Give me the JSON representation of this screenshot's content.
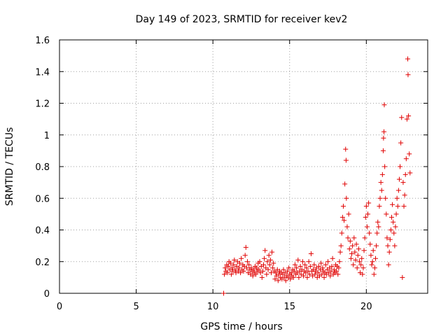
{
  "chart_data": {
    "type": "scatter",
    "title": "Day 149 of 2023, SRMTID for receiver kev2",
    "xlabel": "GPS time / hours",
    "ylabel": "SRMTID / TECUs",
    "xlim": [
      0,
      24
    ],
    "ylim": [
      0,
      1.6
    ],
    "x_ticks": [
      0,
      5,
      10,
      15,
      20
    ],
    "x_tick_labels": [
      "0",
      "5",
      "10",
      "15",
      "20"
    ],
    "y_ticks": [
      0,
      0.2,
      0.4,
      0.6,
      0.8,
      1.0,
      1.2,
      1.4,
      1.6
    ],
    "y_tick_labels": [
      "0",
      "0.2",
      "0.4",
      "0.6",
      "0.8",
      "1",
      "1.2",
      "1.4",
      "1.6"
    ],
    "grid": true,
    "marker": "+",
    "color": "#e00000",
    "series": [
      {
        "name": "kev2",
        "points": [
          [
            10.7,
            0.0
          ],
          [
            10.75,
            0.12
          ],
          [
            10.8,
            0.16
          ],
          [
            10.85,
            0.14
          ],
          [
            10.9,
            0.18
          ],
          [
            10.95,
            0.13
          ],
          [
            11.0,
            0.17
          ],
          [
            11.05,
            0.2
          ],
          [
            11.1,
            0.15
          ],
          [
            11.15,
            0.19
          ],
          [
            11.2,
            0.12
          ],
          [
            11.25,
            0.16
          ],
          [
            11.3,
            0.14
          ],
          [
            11.35,
            0.18
          ],
          [
            11.4,
            0.21
          ],
          [
            11.45,
            0.15
          ],
          [
            11.5,
            0.13
          ],
          [
            11.55,
            0.17
          ],
          [
            11.6,
            0.2
          ],
          [
            11.65,
            0.14
          ],
          [
            11.7,
            0.16
          ],
          [
            11.75,
            0.19
          ],
          [
            11.8,
            0.13
          ],
          [
            11.85,
            0.22
          ],
          [
            11.9,
            0.15
          ],
          [
            11.95,
            0.18
          ],
          [
            12.0,
            0.14
          ],
          [
            12.05,
            0.17
          ],
          [
            12.1,
            0.24
          ],
          [
            12.15,
            0.29
          ],
          [
            12.2,
            0.16
          ],
          [
            12.25,
            0.2
          ],
          [
            12.3,
            0.13
          ],
          [
            12.35,
            0.18
          ],
          [
            12.4,
            0.15
          ],
          [
            12.45,
            0.12
          ],
          [
            12.5,
            0.16
          ],
          [
            12.55,
            0.14
          ],
          [
            12.6,
            0.11
          ],
          [
            12.65,
            0.15
          ],
          [
            12.7,
            0.13
          ],
          [
            12.75,
            0.17
          ],
          [
            12.8,
            0.12
          ],
          [
            12.85,
            0.16
          ],
          [
            12.9,
            0.14
          ],
          [
            12.95,
            0.19
          ],
          [
            13.0,
            0.15
          ],
          [
            13.05,
            0.2
          ],
          [
            13.1,
            0.13
          ],
          [
            13.15,
            0.17
          ],
          [
            13.2,
            0.1
          ],
          [
            13.25,
            0.14
          ],
          [
            13.3,
            0.18
          ],
          [
            13.35,
            0.22
          ],
          [
            13.4,
            0.27
          ],
          [
            13.45,
            0.16
          ],
          [
            13.5,
            0.12
          ],
          [
            13.55,
            0.2
          ],
          [
            13.6,
            0.15
          ],
          [
            13.65,
            0.24
          ],
          [
            13.7,
            0.18
          ],
          [
            13.75,
            0.21
          ],
          [
            13.8,
            0.13
          ],
          [
            13.85,
            0.26
          ],
          [
            13.9,
            0.16
          ],
          [
            13.95,
            0.19
          ],
          [
            14.0,
            0.14
          ],
          [
            14.05,
            0.09
          ],
          [
            14.1,
            0.13
          ],
          [
            14.15,
            0.11
          ],
          [
            14.2,
            0.15
          ],
          [
            14.25,
            0.08
          ],
          [
            14.3,
            0.12
          ],
          [
            14.35,
            0.14
          ],
          [
            14.4,
            0.1
          ],
          [
            14.45,
            0.13
          ],
          [
            14.5,
            0.09
          ],
          [
            14.55,
            0.12
          ],
          [
            14.6,
            0.15
          ],
          [
            14.65,
            0.1
          ],
          [
            14.7,
            0.13
          ],
          [
            14.75,
            0.08
          ],
          [
            14.8,
            0.11
          ],
          [
            14.85,
            0.14
          ],
          [
            14.9,
            0.1
          ],
          [
            14.95,
            0.16
          ],
          [
            15.0,
            0.12
          ],
          [
            15.05,
            0.09
          ],
          [
            15.1,
            0.13
          ],
          [
            15.15,
            0.11
          ],
          [
            15.2,
            0.15
          ],
          [
            15.25,
            0.1
          ],
          [
            15.3,
            0.14
          ],
          [
            15.35,
            0.18
          ],
          [
            15.4,
            0.12
          ],
          [
            15.45,
            0.16
          ],
          [
            15.5,
            0.13
          ],
          [
            15.55,
            0.21
          ],
          [
            15.6,
            0.1
          ],
          [
            15.65,
            0.14
          ],
          [
            15.7,
            0.17
          ],
          [
            15.75,
            0.12
          ],
          [
            15.8,
            0.15
          ],
          [
            15.85,
            0.2
          ],
          [
            15.9,
            0.11
          ],
          [
            15.95,
            0.14
          ],
          [
            16.0,
            0.18
          ],
          [
            16.05,
            0.13
          ],
          [
            16.1,
            0.16
          ],
          [
            16.15,
            0.1
          ],
          [
            16.2,
            0.14
          ],
          [
            16.25,
            0.2
          ],
          [
            16.3,
            0.12
          ],
          [
            16.35,
            0.17
          ],
          [
            16.4,
            0.25
          ],
          [
            16.45,
            0.14
          ],
          [
            16.5,
            0.11
          ],
          [
            16.55,
            0.15
          ],
          [
            16.6,
            0.18
          ],
          [
            16.65,
            0.12
          ],
          [
            16.7,
            0.14
          ],
          [
            16.75,
            0.16
          ],
          [
            16.8,
            0.1
          ],
          [
            16.85,
            0.13
          ],
          [
            16.9,
            0.17
          ],
          [
            16.95,
            0.11
          ],
          [
            17.0,
            0.15
          ],
          [
            17.05,
            0.19
          ],
          [
            17.1,
            0.12
          ],
          [
            17.15,
            0.16
          ],
          [
            17.2,
            0.14
          ],
          [
            17.25,
            0.1
          ],
          [
            17.3,
            0.13
          ],
          [
            17.35,
            0.18
          ],
          [
            17.4,
            0.12
          ],
          [
            17.45,
            0.15
          ],
          [
            17.5,
            0.2
          ],
          [
            17.55,
            0.13
          ],
          [
            17.6,
            0.16
          ],
          [
            17.65,
            0.11
          ],
          [
            17.7,
            0.14
          ],
          [
            17.75,
            0.17
          ],
          [
            17.8,
            0.22
          ],
          [
            17.85,
            0.12
          ],
          [
            17.9,
            0.15
          ],
          [
            17.95,
            0.13
          ],
          [
            18.0,
            0.18
          ],
          [
            18.05,
            0.14
          ],
          [
            18.1,
            0.17
          ],
          [
            18.15,
            0.12
          ],
          [
            18.2,
            0.16
          ],
          [
            18.25,
            0.2
          ],
          [
            18.3,
            0.26
          ],
          [
            18.35,
            0.3
          ],
          [
            18.4,
            0.38
          ],
          [
            18.45,
            0.48
          ],
          [
            18.5,
            0.55
          ],
          [
            18.55,
            0.46
          ],
          [
            18.6,
            0.69
          ],
          [
            18.65,
            0.91
          ],
          [
            18.68,
            0.84
          ],
          [
            18.7,
            0.6
          ],
          [
            18.75,
            0.42
          ],
          [
            18.8,
            0.35
          ],
          [
            18.85,
            0.5
          ],
          [
            18.9,
            0.28
          ],
          [
            18.95,
            0.33
          ],
          [
            19.0,
            0.22
          ],
          [
            19.05,
            0.25
          ],
          [
            19.1,
            0.3
          ],
          [
            19.15,
            0.18
          ],
          [
            19.2,
            0.35
          ],
          [
            19.25,
            0.26
          ],
          [
            19.3,
            0.21
          ],
          [
            19.35,
            0.31
          ],
          [
            19.4,
            0.16
          ],
          [
            19.45,
            0.24
          ],
          [
            19.5,
            0.28
          ],
          [
            19.55,
            0.2
          ],
          [
            19.6,
            0.13
          ],
          [
            19.65,
            0.18
          ],
          [
            19.7,
            0.22
          ],
          [
            19.75,
            0.12
          ],
          [
            19.8,
            0.16
          ],
          [
            19.85,
            0.27
          ],
          [
            19.9,
            0.35
          ],
          [
            19.95,
            0.48
          ],
          [
            20.0,
            0.55
          ],
          [
            20.05,
            0.42
          ],
          [
            20.1,
            0.5
          ],
          [
            20.15,
            0.57
          ],
          [
            20.2,
            0.38
          ],
          [
            20.25,
            0.31
          ],
          [
            20.3,
            0.24
          ],
          [
            20.35,
            0.18
          ],
          [
            20.4,
            0.2
          ],
          [
            20.45,
            0.27
          ],
          [
            20.5,
            0.12
          ],
          [
            20.55,
            0.16
          ],
          [
            20.6,
            0.22
          ],
          [
            20.65,
            0.3
          ],
          [
            20.7,
            0.38
          ],
          [
            20.75,
            0.45
          ],
          [
            20.8,
            0.42
          ],
          [
            20.85,
            0.55
          ],
          [
            20.9,
            0.6
          ],
          [
            20.95,
            0.7
          ],
          [
            21.0,
            0.65
          ],
          [
            21.05,
            0.75
          ],
          [
            21.1,
            0.9
          ],
          [
            21.12,
            0.98
          ],
          [
            21.15,
            1.02
          ],
          [
            21.17,
            1.19
          ],
          [
            21.2,
            0.8
          ],
          [
            21.25,
            0.6
          ],
          [
            21.3,
            0.5
          ],
          [
            21.35,
            0.35
          ],
          [
            21.4,
            0.3
          ],
          [
            21.45,
            0.18
          ],
          [
            21.5,
            0.26
          ],
          [
            21.55,
            0.34
          ],
          [
            21.6,
            0.4
          ],
          [
            21.65,
            0.48
          ],
          [
            21.7,
            0.56
          ],
          [
            21.75,
            0.45
          ],
          [
            21.8,
            0.38
          ],
          [
            21.85,
            0.3
          ],
          [
            21.9,
            0.42
          ],
          [
            21.95,
            0.5
          ],
          [
            22.0,
            0.6
          ],
          [
            22.05,
            0.55
          ],
          [
            22.1,
            0.65
          ],
          [
            22.15,
            0.72
          ],
          [
            22.2,
            0.8
          ],
          [
            22.25,
            0.95
          ],
          [
            22.3,
            1.11
          ],
          [
            22.35,
            0.1
          ],
          [
            22.4,
            0.7
          ],
          [
            22.45,
            0.55
          ],
          [
            22.5,
            0.62
          ],
          [
            22.55,
            0.75
          ],
          [
            22.6,
            0.85
          ],
          [
            22.65,
            1.1
          ],
          [
            22.7,
            1.48
          ],
          [
            22.72,
            1.38
          ],
          [
            22.75,
            1.12
          ],
          [
            22.8,
            0.88
          ],
          [
            22.85,
            0.76
          ]
        ]
      }
    ]
  }
}
